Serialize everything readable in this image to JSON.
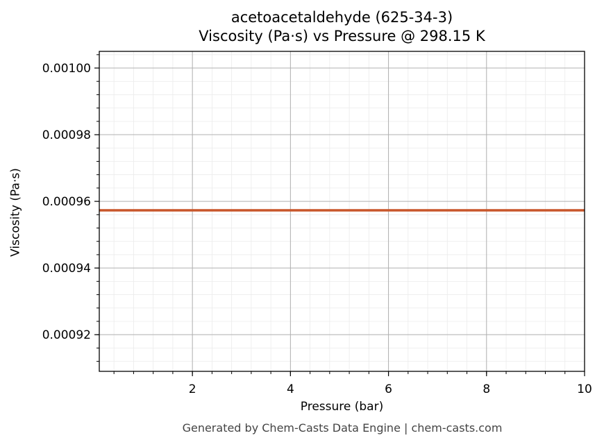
{
  "chart_data": {
    "type": "line",
    "title": "acetoacetaldehyde (625-34-3)",
    "subtitle": "Viscosity (Pa·s) vs Pressure @ 298.15 K",
    "xlabel": "Pressure (bar)",
    "ylabel": "Viscosity (Pa·s)",
    "xlim": [
      0.1,
      10
    ],
    "ylim": [
      0.000909,
      0.001005
    ],
    "x_ticks": [
      2,
      4,
      6,
      8,
      10
    ],
    "x_tick_labels": [
      "2",
      "4",
      "6",
      "8",
      "10"
    ],
    "y_ticks": [
      0.00092,
      0.00094,
      0.00096,
      0.00098,
      0.001
    ],
    "y_tick_labels": [
      "0.00092",
      "0.00094",
      "0.00096",
      "0.00098",
      "0.00100"
    ],
    "grid": true,
    "series": [
      {
        "color": "#c8562a",
        "x": [
          0.1,
          1,
          2,
          3,
          4,
          5,
          6,
          7,
          8,
          9,
          10
        ],
        "values": [
          0.0009573,
          0.0009573,
          0.0009573,
          0.0009573,
          0.0009573,
          0.0009573,
          0.0009573,
          0.0009573,
          0.0009573,
          0.0009573,
          0.0009573
        ]
      }
    ]
  },
  "footer": "Generated by Chem-Casts Data Engine | chem-casts.com"
}
